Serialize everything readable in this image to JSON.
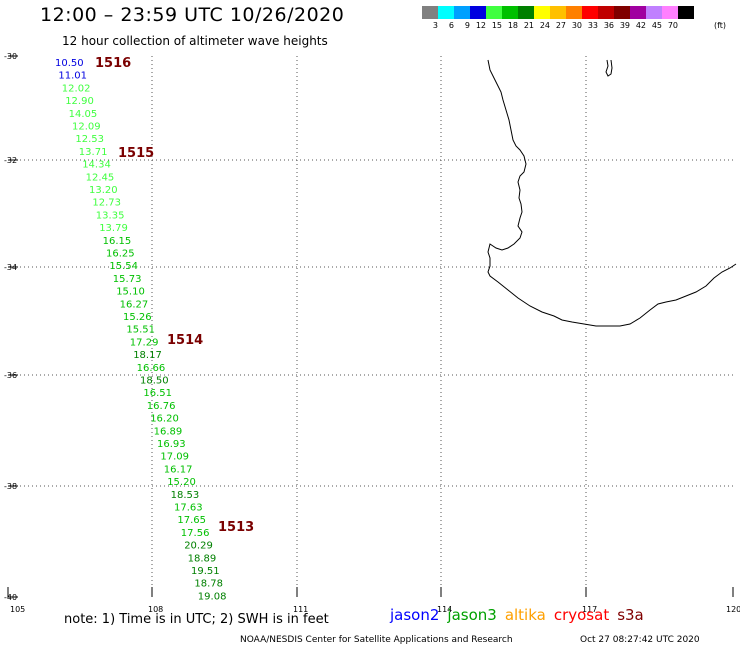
{
  "header": {
    "title": "12:00 – 23:59 UTC 10/26/2020",
    "subtitle": "12 hour collection of altimeter wave heights"
  },
  "legend": {
    "colors": [
      "#808080",
      "#00ffff",
      "#00a0ff",
      "#0000e0",
      "#40ff40",
      "#00c000",
      "#008000",
      "#ffff00",
      "#ffc000",
      "#ff8000",
      "#ff0000",
      "#c00000",
      "#800000",
      "#a000a0",
      "#c080ff",
      "#ff80ff",
      "#000000"
    ],
    "labels": [
      "3",
      "6",
      "9",
      "12",
      "15",
      "18",
      "21",
      "24",
      "27",
      "30",
      "33",
      "36",
      "39",
      "42",
      "45",
      "70"
    ],
    "unit": "(ft)"
  },
  "map": {
    "lat_ticks": [
      "-30",
      "-32",
      "-34",
      "-36",
      "-38",
      "-40"
    ],
    "lon_ticks": [
      "105",
      "108",
      "111",
      "114",
      "117",
      "120"
    ],
    "track_ids": [
      "1516",
      "1515",
      "1514",
      "1513"
    ],
    "wave_heights": [
      "10.50",
      "11.01",
      "12.02",
      "12.90",
      "14.05",
      "12.09",
      "12.53",
      "13.71",
      "14.34",
      "12.45",
      "13.20",
      "12.73",
      "13.35",
      "13.79",
      "16.15",
      "16.25",
      "15.54",
      "15.73",
      "15.10",
      "16.27",
      "15.26",
      "15.51",
      "17.29",
      "18.17",
      "16.66",
      "18.50",
      "16.51",
      "16.76",
      "16.20",
      "16.89",
      "16.93",
      "17.09",
      "16.17",
      "15.20",
      "18.53",
      "17.63",
      "17.65",
      "17.56",
      "20.29",
      "18.89",
      "19.51",
      "18.78",
      "19.08"
    ]
  },
  "footer": {
    "note": "note:  1) Time is in UTC;  2) SWH is in feet",
    "satellites": [
      {
        "name": "jason2",
        "color": "#0000ff"
      },
      {
        "name": "jason3",
        "color": "#00a000"
      },
      {
        "name": "altika",
        "color": "#ffa000"
      },
      {
        "name": "cryosat",
        "color": "#ff0000"
      },
      {
        "name": "s3a",
        "color": "#800000"
      }
    ],
    "credit": "NOAA/NESDIS Center for Satellite Applications and Research",
    "timestamp": "Oct 27 08:27:42 UTC 2020"
  }
}
